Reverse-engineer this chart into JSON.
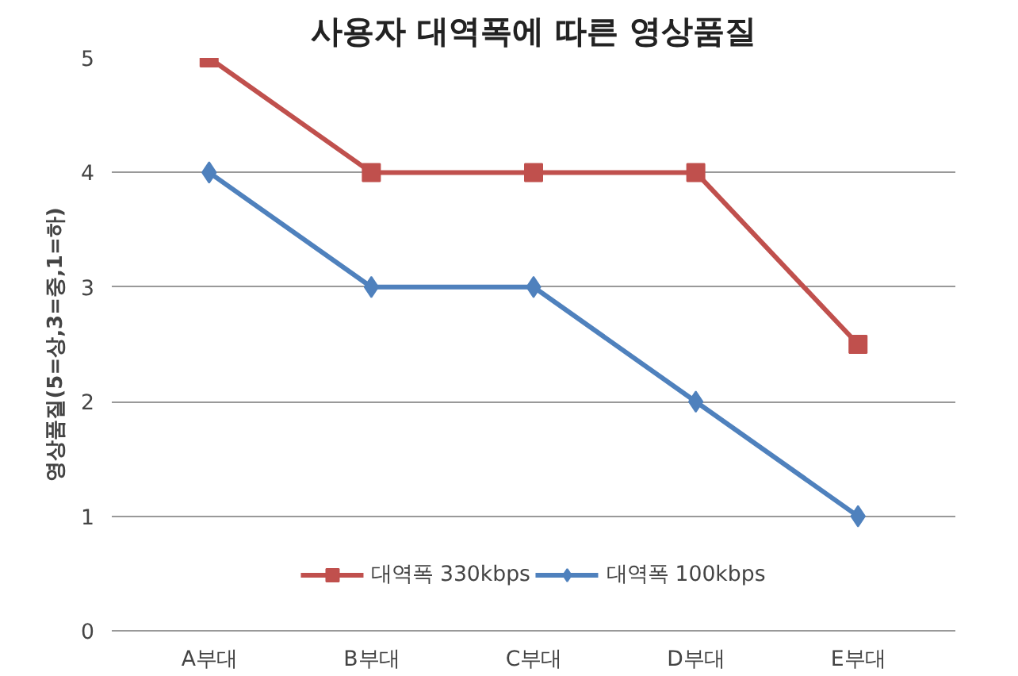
{
  "chart_data": {
    "type": "line",
    "title": "사용자 대역폭에 따른 영상품질",
    "ylabel": "영상품질(5=상,3=중,1=하)",
    "categories": [
      "A부대",
      "B부대",
      "C부대",
      "D부대",
      "E부대"
    ],
    "series": [
      {
        "name": "대역폭 330kbps",
        "color": "#c0504d",
        "marker": "square",
        "values": [
          5,
          4,
          4,
          4,
          2.5
        ]
      },
      {
        "name": "대역폭 100kbps",
        "color": "#4f81bd",
        "marker": "diamond",
        "values": [
          4,
          3,
          3,
          2,
          1
        ]
      }
    ],
    "ylim": [
      0,
      5
    ],
    "yticks": [
      0,
      1,
      2,
      3,
      4,
      5
    ],
    "grid": "y",
    "legend": "bottom",
    "line_style": "solid"
  }
}
